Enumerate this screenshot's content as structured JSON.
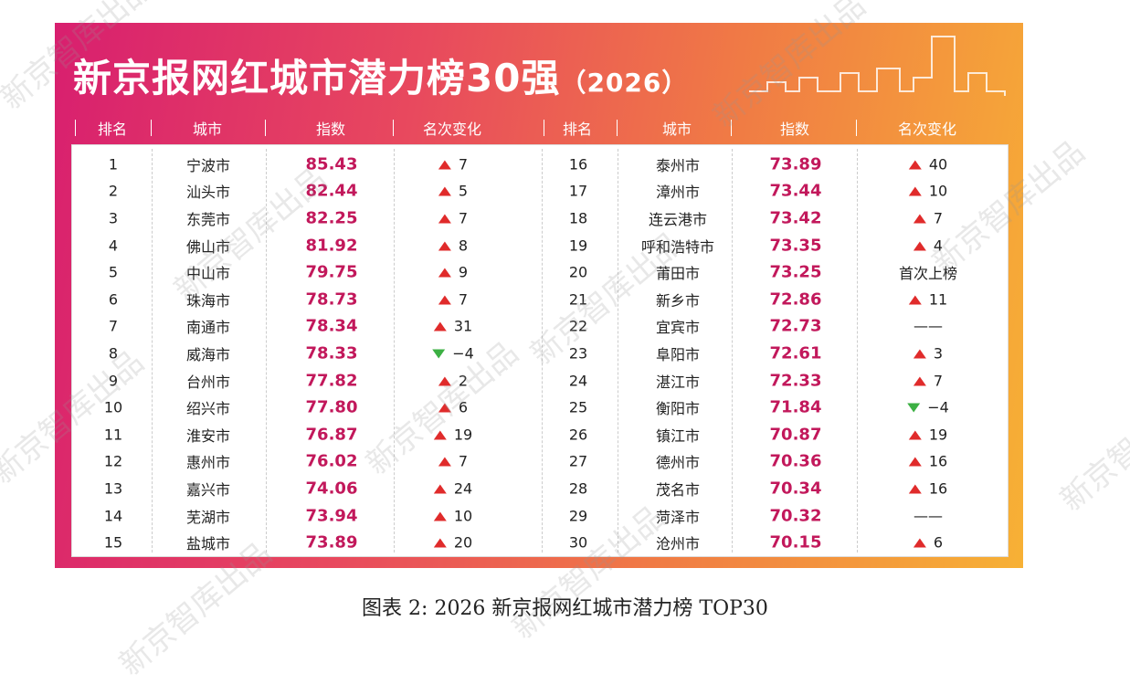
{
  "title": "新京报网红城市潜力榜30强",
  "title_year": "（2026）",
  "table": {
    "headers": [
      "排名",
      "城市",
      "指数",
      "名次变化"
    ],
    "rows": [
      [
        1,
        "宁波市",
        "85.43",
        "7"
      ],
      [
        2,
        "汕头市",
        "82.44",
        "5"
      ],
      [
        3,
        "东莞市",
        "82.25",
        "7"
      ],
      [
        4,
        "佛山市",
        "81.92",
        "8"
      ],
      [
        5,
        "中山市",
        "79.75",
        "9"
      ],
      [
        6,
        "珠海市",
        "78.73",
        "7"
      ],
      [
        7,
        "南通市",
        "78.34",
        "31"
      ],
      [
        8,
        "威海市",
        "78.33",
        "−4"
      ],
      [
        9,
        "台州市",
        "77.82",
        "2"
      ],
      [
        10,
        "绍兴市",
        "77.80",
        "6"
      ],
      [
        11,
        "淮安市",
        "76.87",
        "19"
      ],
      [
        12,
        "惠州市",
        "76.02",
        "7"
      ],
      [
        13,
        "嘉兴市",
        "74.06",
        "24"
      ],
      [
        14,
        "芜湖市",
        "73.94",
        "10"
      ],
      [
        15,
        "盐城市",
        "73.89",
        "20"
      ],
      [
        16,
        "泰州市",
        "73.89",
        "40"
      ],
      [
        17,
        "漳州市",
        "73.44",
        "10"
      ],
      [
        18,
        "连云港市",
        "73.42",
        "7"
      ],
      [
        19,
        "呼和浩特市",
        "73.35",
        "4"
      ],
      [
        20,
        "莆田市",
        "73.25",
        "首次上榜"
      ],
      [
        21,
        "新乡市",
        "72.86",
        "11"
      ],
      [
        22,
        "宜宾市",
        "72.73",
        "——"
      ],
      [
        23,
        "阜阳市",
        "72.61",
        "3"
      ],
      [
        24,
        "湛江市",
        "72.33",
        "7"
      ],
      [
        25,
        "衡阳市",
        "71.84",
        "−4"
      ],
      [
        26,
        "镇江市",
        "70.87",
        "19"
      ],
      [
        27,
        "德州市",
        "70.36",
        "16"
      ],
      [
        28,
        "茂名市",
        "70.34",
        "16"
      ],
      [
        29,
        "菏泽市",
        "70.32",
        "——"
      ],
      [
        30,
        "沧州市",
        "70.15",
        "6"
      ]
    ]
  },
  "caption": "图表 2: 2026 新京报网红城市潜力榜 TOP30",
  "watermark": "新京智库出品"
}
